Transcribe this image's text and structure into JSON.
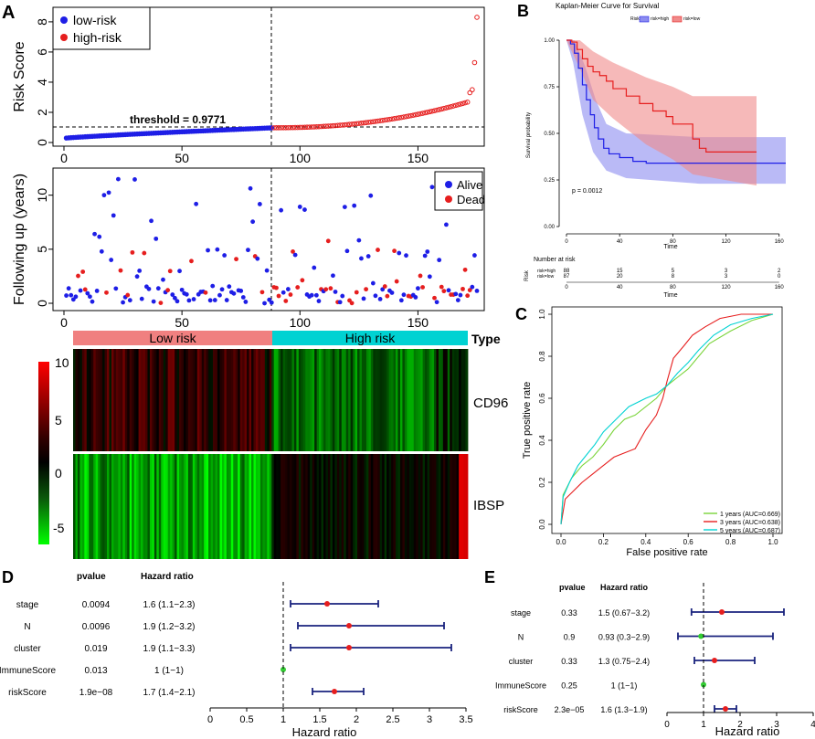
{
  "panels": {
    "A": "A",
    "B": "B",
    "C": "C",
    "D": "D",
    "E": "E"
  },
  "colors": {
    "blue": "#1e1ee6",
    "red": "#e61e1e",
    "cyan": "#00d2d2",
    "salmon": "#f08080",
    "green": "#7ad43a",
    "lightred": "#f08a8a",
    "lightblue": "#8c8cf0"
  },
  "chart_data": [
    {
      "id": "risk-score",
      "type": "scatter",
      "ylabel": "Risk Score",
      "xlim": [
        0,
        175
      ],
      "ylim": [
        0,
        8.6
      ],
      "xticks": [
        "0",
        "50",
        "100",
        "150"
      ],
      "yticks": [
        "0",
        "2",
        "4",
        "6",
        "8"
      ],
      "legend": [
        "low-risk",
        "high-risk"
      ],
      "threshold_label": "threshold = 0.9771",
      "threshold": 0.9771,
      "cutoff_index": 88,
      "n": 175,
      "low_range": [
        0.28,
        0.97
      ],
      "high_tail": [
        3.3,
        3.5,
        5.3,
        8.3
      ]
    },
    {
      "id": "followup",
      "type": "scatter",
      "ylabel": "Following up (years)",
      "xlim": [
        0,
        175
      ],
      "ylim": [
        0,
        12
      ],
      "xticks": [
        "0",
        "50",
        "100",
        "150"
      ],
      "yticks": [
        "0",
        "5",
        "10"
      ],
      "legend": [
        "Alive",
        "Dead"
      ],
      "cutoff_index": 88
    },
    {
      "id": "heatmap",
      "type": "heatmap",
      "groups": [
        "Low risk",
        "High risk"
      ],
      "group_header": "Type",
      "rows": [
        "CD96",
        "IBSP"
      ],
      "scale_ticks": [
        "10",
        "5",
        "0",
        "-5"
      ],
      "scale_range": [
        -7,
        10
      ]
    },
    {
      "id": "km",
      "type": "line",
      "title": "Kaplan-Meier Curve for Survival",
      "legend_title": "Risk",
      "legend": [
        "risk=high",
        "risk=low"
      ],
      "xlabel": "Time",
      "ylabel": "Survival probability",
      "xticks": [
        "0",
        "40",
        "80",
        "120",
        "160"
      ],
      "yticks": [
        "0.00",
        "0.25",
        "0.50",
        "0.75",
        "1.00"
      ],
      "pvalue": "p = 0.0012",
      "series": [
        {
          "name": "risk=high",
          "points": [
            [
              0,
              1
            ],
            [
              3,
              0.98
            ],
            [
              6,
              0.93
            ],
            [
              9,
              0.85
            ],
            [
              12,
              0.76
            ],
            [
              15,
              0.68
            ],
            [
              18,
              0.6
            ],
            [
              21,
              0.53
            ],
            [
              24,
              0.47
            ],
            [
              28,
              0.42
            ],
            [
              32,
              0.39
            ],
            [
              40,
              0.37
            ],
            [
              50,
              0.35
            ],
            [
              60,
              0.34
            ],
            [
              165,
              0.34
            ]
          ]
        },
        {
          "name": "risk=low",
          "points": [
            [
              0,
              1
            ],
            [
              4,
              0.99
            ],
            [
              8,
              0.95
            ],
            [
              12,
              0.9
            ],
            [
              16,
              0.86
            ],
            [
              20,
              0.83
            ],
            [
              25,
              0.81
            ],
            [
              30,
              0.78
            ],
            [
              35,
              0.74
            ],
            [
              45,
              0.7
            ],
            [
              55,
              0.66
            ],
            [
              65,
              0.62
            ],
            [
              75,
              0.59
            ],
            [
              80,
              0.55
            ],
            [
              93,
              0.55
            ],
            [
              95,
              0.47
            ],
            [
              100,
              0.42
            ],
            [
              105,
              0.4
            ],
            [
              143,
              0.4
            ]
          ]
        }
      ],
      "risk_table_title": "Number at risk",
      "risk_table_label": "Risk",
      "risk_table": [
        {
          "name": "risk=high",
          "values": [
            "88",
            "15",
            "5",
            "3",
            "2"
          ]
        },
        {
          "name": "risk=low",
          "values": [
            "87",
            "20",
            "8",
            "3",
            "0"
          ]
        }
      ]
    },
    {
      "id": "roc",
      "type": "line",
      "xlabel": "False positive rate",
      "ylabel": "True positive rate",
      "xticks": [
        "0.0",
        "0.2",
        "0.4",
        "0.6",
        "0.8",
        "1.0"
      ],
      "yticks": [
        "0.0",
        "0.2",
        "0.4",
        "0.6",
        "0.8",
        "1.0"
      ],
      "series": [
        {
          "name": "1 years (AUC=0.669)",
          "points": [
            [
              0,
              0
            ],
            [
              0.01,
              0.14
            ],
            [
              0.05,
              0.22
            ],
            [
              0.1,
              0.28
            ],
            [
              0.15,
              0.32
            ],
            [
              0.2,
              0.38
            ],
            [
              0.25,
              0.45
            ],
            [
              0.3,
              0.5
            ],
            [
              0.35,
              0.52
            ],
            [
              0.45,
              0.6
            ],
            [
              0.5,
              0.66
            ],
            [
              0.55,
              0.7
            ],
            [
              0.6,
              0.74
            ],
            [
              0.65,
              0.8
            ],
            [
              0.7,
              0.86
            ],
            [
              0.8,
              0.92
            ],
            [
              0.9,
              0.97
            ],
            [
              1,
              1
            ]
          ]
        },
        {
          "name": "3 years (AUC=0.638)",
          "points": [
            [
              0,
              0
            ],
            [
              0.02,
              0.12
            ],
            [
              0.05,
              0.15
            ],
            [
              0.1,
              0.2
            ],
            [
              0.15,
              0.24
            ],
            [
              0.2,
              0.28
            ],
            [
              0.25,
              0.32
            ],
            [
              0.3,
              0.34
            ],
            [
              0.35,
              0.36
            ],
            [
              0.4,
              0.45
            ],
            [
              0.45,
              0.52
            ],
            [
              0.48,
              0.6
            ],
            [
              0.5,
              0.68
            ],
            [
              0.53,
              0.79
            ],
            [
              0.58,
              0.85
            ],
            [
              0.62,
              0.9
            ],
            [
              0.68,
              0.94
            ],
            [
              0.75,
              0.98
            ],
            [
              0.85,
              1
            ],
            [
              1,
              1
            ]
          ]
        },
        {
          "name": "5 years (AUC=0.687)",
          "points": [
            [
              0,
              0
            ],
            [
              0.01,
              0.13
            ],
            [
              0.04,
              0.2
            ],
            [
              0.08,
              0.28
            ],
            [
              0.12,
              0.33
            ],
            [
              0.16,
              0.38
            ],
            [
              0.2,
              0.44
            ],
            [
              0.26,
              0.5
            ],
            [
              0.32,
              0.56
            ],
            [
              0.4,
              0.6
            ],
            [
              0.45,
              0.62
            ],
            [
              0.5,
              0.66
            ],
            [
              0.55,
              0.72
            ],
            [
              0.6,
              0.77
            ],
            [
              0.65,
              0.83
            ],
            [
              0.72,
              0.9
            ],
            [
              0.8,
              0.95
            ],
            [
              0.9,
              0.98
            ],
            [
              1,
              1
            ]
          ]
        }
      ]
    },
    {
      "id": "forest-uni",
      "type": "scatter",
      "col_pvalue": "pvalue",
      "col_hr": "Hazard ratio",
      "xlabel": "Hazard ratio",
      "xlim": [
        0,
        3.5
      ],
      "xticks": [
        "0",
        "0.5",
        "1",
        "1.5",
        "2",
        "2.5",
        "3",
        "3.5"
      ],
      "rows": [
        {
          "name": "stage",
          "pvalue": "0.0094",
          "hr_text": "1.6 (1.1−2.3)",
          "hr": 1.6,
          "lo": 1.1,
          "hi": 2.3
        },
        {
          "name": "N",
          "pvalue": "0.0096",
          "hr_text": "1.9 (1.2−3.2)",
          "hr": 1.9,
          "lo": 1.2,
          "hi": 3.2
        },
        {
          "name": "cluster",
          "pvalue": "0.019",
          "hr_text": "1.9 (1.1−3.3)",
          "hr": 1.9,
          "lo": 1.1,
          "hi": 3.3
        },
        {
          "name": "ImmuneScore",
          "pvalue": "0.013",
          "hr_text": "1 (1−1)",
          "hr": 1,
          "lo": 1,
          "hi": 1
        },
        {
          "name": "riskScore",
          "pvalue": "1.9e−08",
          "hr_text": "1.7 (1.4−2.1)",
          "hr": 1.7,
          "lo": 1.4,
          "hi": 2.1
        }
      ]
    },
    {
      "id": "forest-multi",
      "type": "scatter",
      "col_pvalue": "pvalue",
      "col_hr": "Hazard ratio",
      "xlabel": "Hazard ratio",
      "xlim": [
        0,
        4
      ],
      "xticks": [
        "0",
        "1",
        "2",
        "3",
        "4"
      ],
      "rows": [
        {
          "name": "stage",
          "pvalue": "0.33",
          "hr_text": "1.5 (0.67−3.2)",
          "hr": 1.5,
          "lo": 0.67,
          "hi": 3.2
        },
        {
          "name": "N",
          "pvalue": "0.9",
          "hr_text": "0.93 (0.3−2.9)",
          "hr": 0.93,
          "lo": 0.3,
          "hi": 2.9
        },
        {
          "name": "cluster",
          "pvalue": "0.33",
          "hr_text": "1.3 (0.75−2.4)",
          "hr": 1.3,
          "lo": 0.75,
          "hi": 2.4
        },
        {
          "name": "ImmuneScore",
          "pvalue": "0.25",
          "hr_text": "1 (1−1)",
          "hr": 1,
          "lo": 1,
          "hi": 1
        },
        {
          "name": "riskScore",
          "pvalue": "2.3e−05",
          "hr_text": "1.6 (1.3−1.9)",
          "hr": 1.6,
          "lo": 1.3,
          "hi": 1.9
        }
      ]
    }
  ]
}
